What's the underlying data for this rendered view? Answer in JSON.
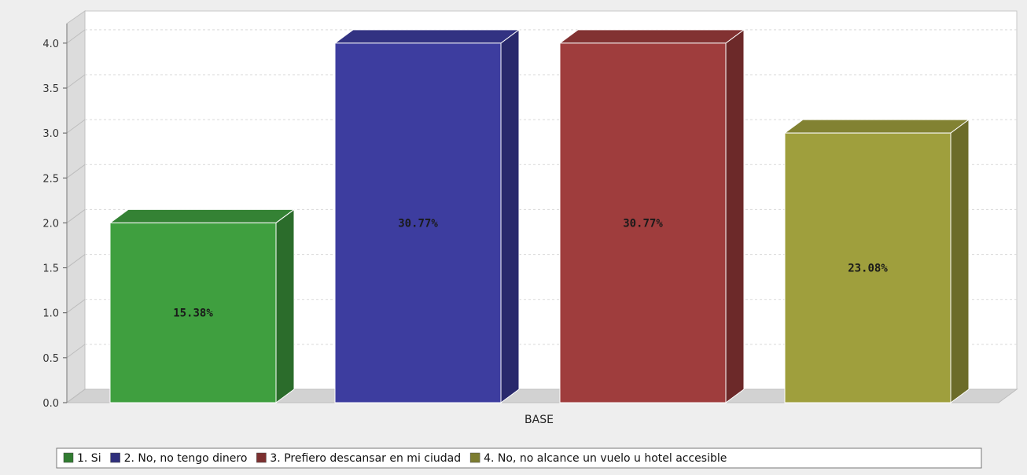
{
  "chart_data": {
    "type": "bar",
    "categories": [
      "BASE"
    ],
    "series": [
      {
        "name": "1. Si",
        "values": [
          2
        ],
        "label": "15.38%",
        "color": "#3f9f3f"
      },
      {
        "name": "2. No, no tengo dinero",
        "values": [
          4
        ],
        "label": "30.77%",
        "color": "#3d3d9f"
      },
      {
        "name": "3. Prefiero descansar en mi ciudad",
        "values": [
          4
        ],
        "label": "30.77%",
        "color": "#9f3d3d"
      },
      {
        "name": "4. No, no alcance un vuelo u hotel accesible",
        "values": [
          3
        ],
        "label": "23.08%",
        "color": "#9f9f3d"
      }
    ],
    "yticks": [
      "0.0",
      "0.5",
      "1.0",
      "1.5",
      "2.0",
      "2.5",
      "3.0",
      "3.5",
      "4.0"
    ],
    "ylim": [
      0,
      4.2
    ],
    "grid": true,
    "legend": "bottom"
  }
}
